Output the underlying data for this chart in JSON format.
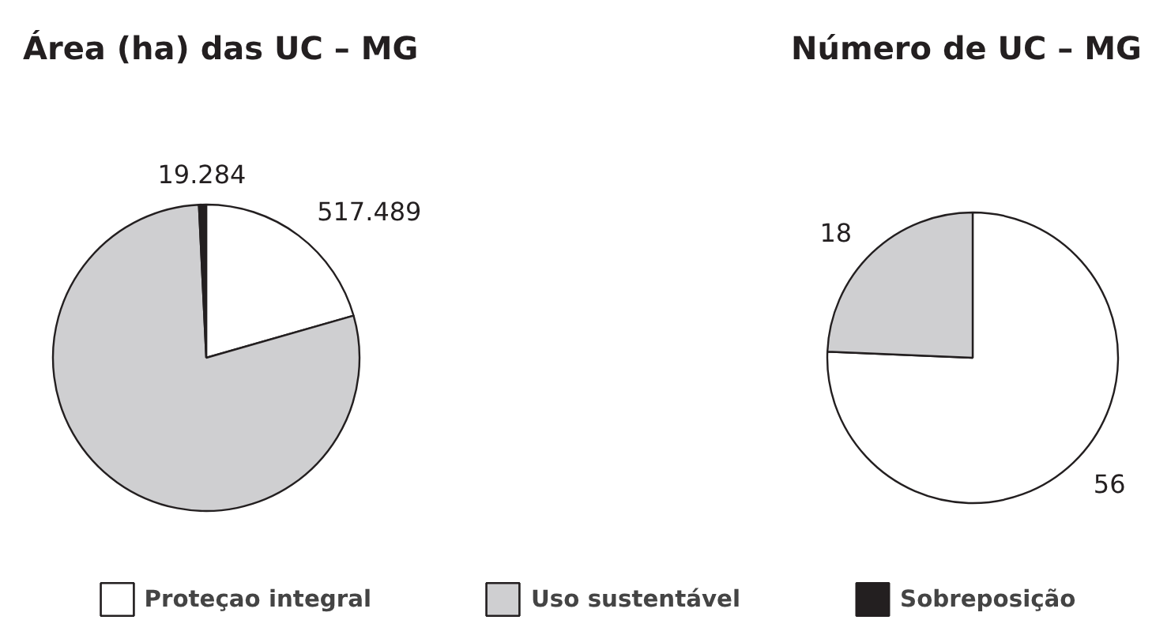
{
  "chart_data": [
    {
      "type": "pie",
      "title": "Área (ha) das UC – MG",
      "categories": [
        "Proteçao integral",
        "Uso sustentável",
        "Sobreposição"
      ],
      "values": [
        517489,
        1980000,
        19284
      ],
      "value_labels": [
        "517.489",
        null,
        "19.284"
      ],
      "colors": [
        "#ffffff",
        "#cfcfd1",
        "#231f20"
      ],
      "legend": "bottom"
    },
    {
      "type": "pie",
      "title": "Número de UC – MG",
      "categories": [
        null,
        null
      ],
      "values": [
        56,
        18
      ],
      "data_labels": true,
      "colors": [
        "#ffffff",
        "#cfcfd1"
      ]
    }
  ]
}
